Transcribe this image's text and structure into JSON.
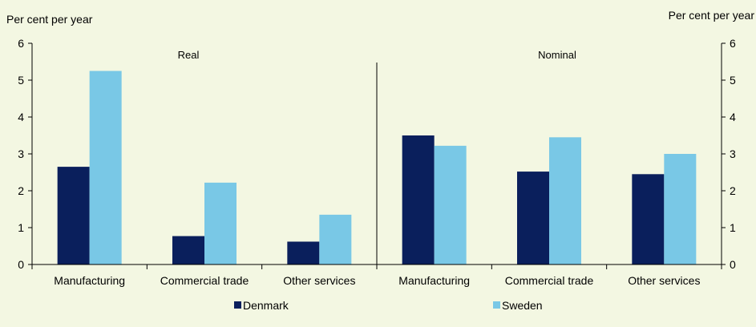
{
  "chart_data": {
    "type": "bar",
    "y_unit_left": "Per cent per year",
    "y_unit_right": "Per cent per year",
    "ylim": [
      0,
      6
    ],
    "yticks": [
      0,
      1,
      2,
      3,
      4,
      5,
      6
    ],
    "grid": false,
    "legend_position": "bottom",
    "panels": [
      {
        "label": "Real",
        "categories": [
          "Manufacturing",
          "Commercial trade",
          "Other services"
        ],
        "series": [
          {
            "name": "Denmark",
            "values": [
              2.65,
              0.77,
              0.62
            ]
          },
          {
            "name": "Sweden",
            "values": [
              5.25,
              2.22,
              1.35
            ]
          }
        ]
      },
      {
        "label": "Nominal",
        "categories": [
          "Manufacturing",
          "Commercial trade",
          "Other services"
        ],
        "series": [
          {
            "name": "Denmark",
            "values": [
              3.5,
              2.52,
              2.45
            ]
          },
          {
            "name": "Sweden",
            "values": [
              3.22,
              3.45,
              3.0
            ]
          }
        ]
      }
    ],
    "legend": [
      {
        "name": "Denmark",
        "color": "#0a1f5c"
      },
      {
        "name": "Sweden",
        "color": "#79c8e6"
      }
    ]
  }
}
